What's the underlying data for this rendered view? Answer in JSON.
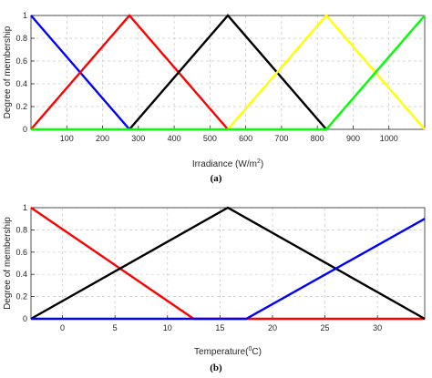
{
  "chart_data": [
    {
      "type": "line",
      "caption": "(a)",
      "xlabel": "Irradiance (W/m",
      "xlabel_sup": "2",
      "xlabel_suffix": ")",
      "ylabel": "Degree of membership",
      "xlim": [
        0,
        1100
      ],
      "ylim": [
        0,
        1
      ],
      "xticks": [
        100,
        200,
        300,
        400,
        500,
        600,
        700,
        800,
        900,
        1000
      ],
      "yticks": [
        0,
        0.2,
        0.4,
        0.6,
        0.8,
        1
      ],
      "ytick_labels": [
        "0",
        "0.2",
        "0.4",
        "0.6",
        "0.8",
        "1"
      ],
      "grid": true,
      "series": [
        {
          "color": "#0000ff",
          "x": [
            0,
            275
          ],
          "y": [
            1,
            0
          ]
        },
        {
          "color": "#ff0000",
          "x": [
            0,
            275,
            550
          ],
          "y": [
            0,
            1,
            0
          ]
        },
        {
          "color": "#000000",
          "x": [
            275,
            550,
            825
          ],
          "y": [
            0,
            1,
            0
          ]
        },
        {
          "color": "#ffff00",
          "x": [
            550,
            825,
            1100
          ],
          "y": [
            0,
            1,
            0
          ]
        },
        {
          "color": "#00ff00",
          "x": [
            0,
            825,
            1100
          ],
          "y": [
            0,
            0,
            1
          ]
        }
      ]
    },
    {
      "type": "line",
      "caption": "(b)",
      "xlabel": "Temperature(",
      "xlabel_sup": "0",
      "xlabel_suffix": "C)",
      "ylabel": "Degree of membership",
      "xlim": [
        -3,
        34.5
      ],
      "ylim": [
        0,
        1
      ],
      "xticks": [
        0,
        5,
        10,
        15,
        20,
        25,
        30
      ],
      "yticks": [
        0,
        0.2,
        0.4,
        0.6,
        0.8,
        1
      ],
      "ytick_labels": [
        "0",
        "0.2",
        "0.4",
        "0.6",
        "0.8",
        "1"
      ],
      "grid": true,
      "series": [
        {
          "color": "#ff0000",
          "x": [
            -3,
            12.5,
            34.5
          ],
          "y": [
            1,
            0,
            0
          ]
        },
        {
          "color": "#000000",
          "x": [
            -3,
            15.75,
            34.5
          ],
          "y": [
            0,
            1,
            0
          ]
        },
        {
          "color": "#0000ff",
          "x": [
            -3,
            17.5,
            34.5
          ],
          "y": [
            0,
            0,
            0.9
          ]
        }
      ]
    }
  ]
}
